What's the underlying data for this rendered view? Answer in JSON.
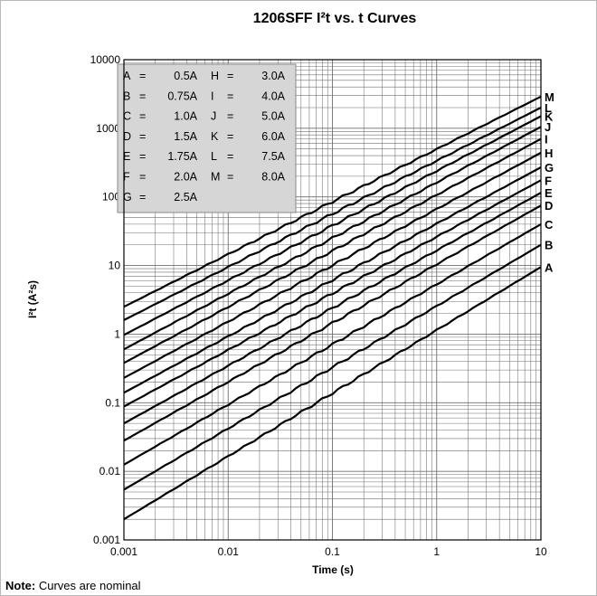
{
  "chart_data": {
    "type": "line",
    "title": "1206SFF I²t  vs. t Curves",
    "xlabel": "Time (s)",
    "ylabel": "I²t (A²s)",
    "x_scale": "log",
    "y_scale": "log",
    "xlim": [
      0.001,
      10
    ],
    "ylim": [
      0.001,
      10000
    ],
    "x_ticks": [
      "0.001",
      "0.01",
      "0.1",
      "1",
      "10"
    ],
    "y_ticks": [
      "0.001",
      "0.01",
      "0.1",
      "1",
      "10",
      "100",
      "1000",
      "10000"
    ],
    "grid": true,
    "legend": {
      "placement": "top-left",
      "entries": [
        {
          "key": "A",
          "value": "0.5A"
        },
        {
          "key": "B",
          "value": "0.75A"
        },
        {
          "key": "C",
          "value": "1.0A"
        },
        {
          "key": "D",
          "value": "1.5A"
        },
        {
          "key": "E",
          "value": "1.75A"
        },
        {
          "key": "F",
          "value": "2.0A"
        },
        {
          "key": "G",
          "value": "2.5A"
        },
        {
          "key": "H",
          "value": "3.0A"
        },
        {
          "key": "I",
          "value": "4.0A"
        },
        {
          "key": "J",
          "value": "5.0A"
        },
        {
          "key": "K",
          "value": "6.0A"
        },
        {
          "key": "L",
          "value": "7.5A"
        },
        {
          "key": "M",
          "value": "8.0A"
        }
      ]
    },
    "series": [
      {
        "name": "A",
        "x": [
          0.001,
          10
        ],
        "y": [
          0.002,
          9.5
        ]
      },
      {
        "name": "B",
        "x": [
          0.001,
          10
        ],
        "y": [
          0.0054,
          20
        ]
      },
      {
        "name": "C",
        "x": [
          0.001,
          10
        ],
        "y": [
          0.0125,
          40
        ]
      },
      {
        "name": "D",
        "x": [
          0.001,
          10
        ],
        "y": [
          0.028,
          75
        ]
      },
      {
        "name": "E",
        "x": [
          0.001,
          10
        ],
        "y": [
          0.05,
          115
        ]
      },
      {
        "name": "F",
        "x": [
          0.001,
          10
        ],
        "y": [
          0.088,
          175
        ]
      },
      {
        "name": "G",
        "x": [
          0.001,
          10
        ],
        "y": [
          0.14,
          270
        ]
      },
      {
        "name": "H",
        "x": [
          0.001,
          10
        ],
        "y": [
          0.23,
          440
        ]
      },
      {
        "name": "I",
        "x": [
          0.001,
          10
        ],
        "y": [
          0.38,
          700
        ]
      },
      {
        "name": "J",
        "x": [
          0.001,
          10
        ],
        "y": [
          0.6,
          1050
        ]
      },
      {
        "name": "K",
        "x": [
          0.001,
          10
        ],
        "y": [
          0.97,
          1500
        ]
      },
      {
        "name": "L",
        "x": [
          0.001,
          10
        ],
        "y": [
          1.6,
          2000
        ]
      },
      {
        "name": "M",
        "x": [
          0.001,
          10
        ],
        "y": [
          2.5,
          2900
        ]
      }
    ]
  },
  "note": {
    "label": "Note:",
    "text": " Curves are nominal"
  },
  "colors": {
    "line": "#000000",
    "grid": "#6f6f6f",
    "legend_bg": "#d6d6d6",
    "frame": "#b8b8b8"
  }
}
